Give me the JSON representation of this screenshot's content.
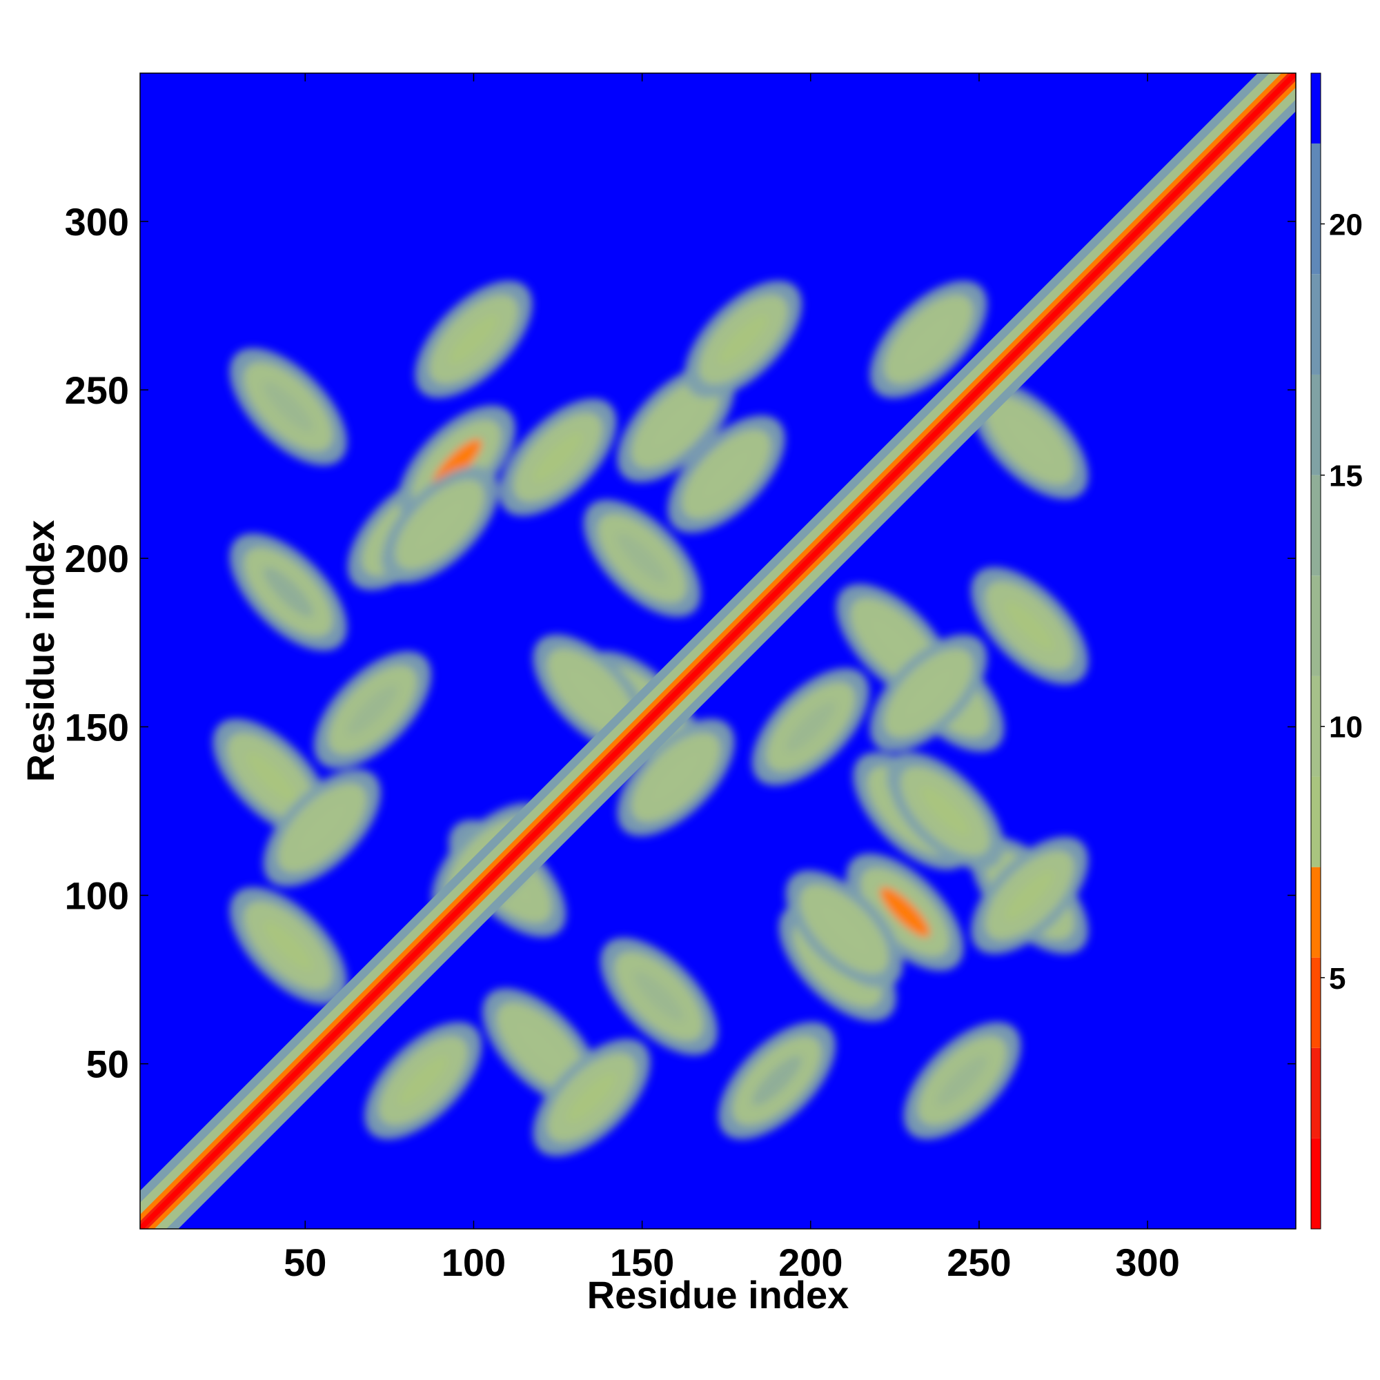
{
  "chart_data": {
    "type": "heatmap",
    "title": "",
    "xlabel": "Residue index",
    "ylabel": "Residue index",
    "xlim": [
      1,
      344
    ],
    "ylim": [
      1,
      344
    ],
    "x_ticks": [
      50,
      100,
      150,
      200,
      250,
      300
    ],
    "y_ticks": [
      50,
      100,
      150,
      200,
      250,
      300
    ],
    "colorbar": {
      "range": [
        0,
        23
      ],
      "ticks": [
        5,
        10,
        15,
        20
      ],
      "levels": [
        {
          "from": 0,
          "to": 1.8,
          "color": "#ff0000"
        },
        {
          "from": 1.8,
          "to": 3.6,
          "color": "#f4200c"
        },
        {
          "from": 3.6,
          "to": 5.4,
          "color": "#ff4d00"
        },
        {
          "from": 5.4,
          "to": 7.2,
          "color": "#ff7a00"
        },
        {
          "from": 7.2,
          "to": 9.0,
          "color": "#a9c47f"
        },
        {
          "from": 9.0,
          "to": 11.0,
          "color": "#a6c18a"
        },
        {
          "from": 11.0,
          "to": 13.0,
          "color": "#9cb890"
        },
        {
          "from": 13.0,
          "to": 15.0,
          "color": "#90ae98"
        },
        {
          "from": 15.0,
          "to": 17.0,
          "color": "#80a2a4"
        },
        {
          "from": 17.0,
          "to": 19.0,
          "color": "#7196b0"
        },
        {
          "from": 19.0,
          "to": 21.6,
          "color": "#5f88b8"
        },
        {
          "from": 21.6,
          "to": 23.0,
          "color": "#0000ff"
        }
      ]
    },
    "background_value": 23,
    "diagonal": {
      "from": 1,
      "to": 344
    },
    "contact_regions": [
      {
        "x": 40,
        "y": 135,
        "value": 8
      },
      {
        "x": 55,
        "y": 120,
        "value": 9
      },
      {
        "x": 45,
        "y": 85,
        "value": 8
      },
      {
        "x": 85,
        "y": 45,
        "value": 8
      },
      {
        "x": 120,
        "y": 55,
        "value": 9
      },
      {
        "x": 135,
        "y": 40,
        "value": 8
      },
      {
        "x": 110,
        "y": 105,
        "value": 10
      },
      {
        "x": 105,
        "y": 110,
        "value": 10
      },
      {
        "x": 155,
        "y": 70,
        "value": 11
      },
      {
        "x": 70,
        "y": 155,
        "value": 11
      },
      {
        "x": 150,
        "y": 155,
        "value": 8
      },
      {
        "x": 160,
        "y": 135,
        "value": 9
      },
      {
        "x": 135,
        "y": 160,
        "value": 9
      },
      {
        "x": 190,
        "y": 45,
        "value": 13
      },
      {
        "x": 45,
        "y": 190,
        "value": 13
      },
      {
        "x": 245,
        "y": 45,
        "value": 12
      },
      {
        "x": 45,
        "y": 245,
        "value": 12
      },
      {
        "x": 80,
        "y": 208,
        "value": 8
      },
      {
        "x": 208,
        "y": 80,
        "value": 8
      },
      {
        "x": 95,
        "y": 228,
        "value": 7
      },
      {
        "x": 228,
        "y": 95,
        "value": 7
      },
      {
        "x": 100,
        "y": 265,
        "value": 8
      },
      {
        "x": 265,
        "y": 100,
        "value": 8
      },
      {
        "x": 125,
        "y": 230,
        "value": 8
      },
      {
        "x": 230,
        "y": 125,
        "value": 8
      },
      {
        "x": 160,
        "y": 240,
        "value": 9
      },
      {
        "x": 240,
        "y": 160,
        "value": 9
      },
      {
        "x": 180,
        "y": 265,
        "value": 8
      },
      {
        "x": 265,
        "y": 180,
        "value": 8
      },
      {
        "x": 175,
        "y": 225,
        "value": 9
      },
      {
        "x": 225,
        "y": 175,
        "value": 9
      },
      {
        "x": 200,
        "y": 150,
        "value": 12
      },
      {
        "x": 150,
        "y": 200,
        "value": 12
      },
      {
        "x": 235,
        "y": 265,
        "value": 9
      },
      {
        "x": 265,
        "y": 235,
        "value": 9
      },
      {
        "x": 235,
        "y": 160,
        "value": 9
      },
      {
        "x": 240,
        "y": 125,
        "value": 8
      },
      {
        "x": 265,
        "y": 100,
        "value": 8
      },
      {
        "x": 210,
        "y": 90,
        "value": 10
      },
      {
        "x": 90,
        "y": 210,
        "value": 10
      }
    ]
  }
}
